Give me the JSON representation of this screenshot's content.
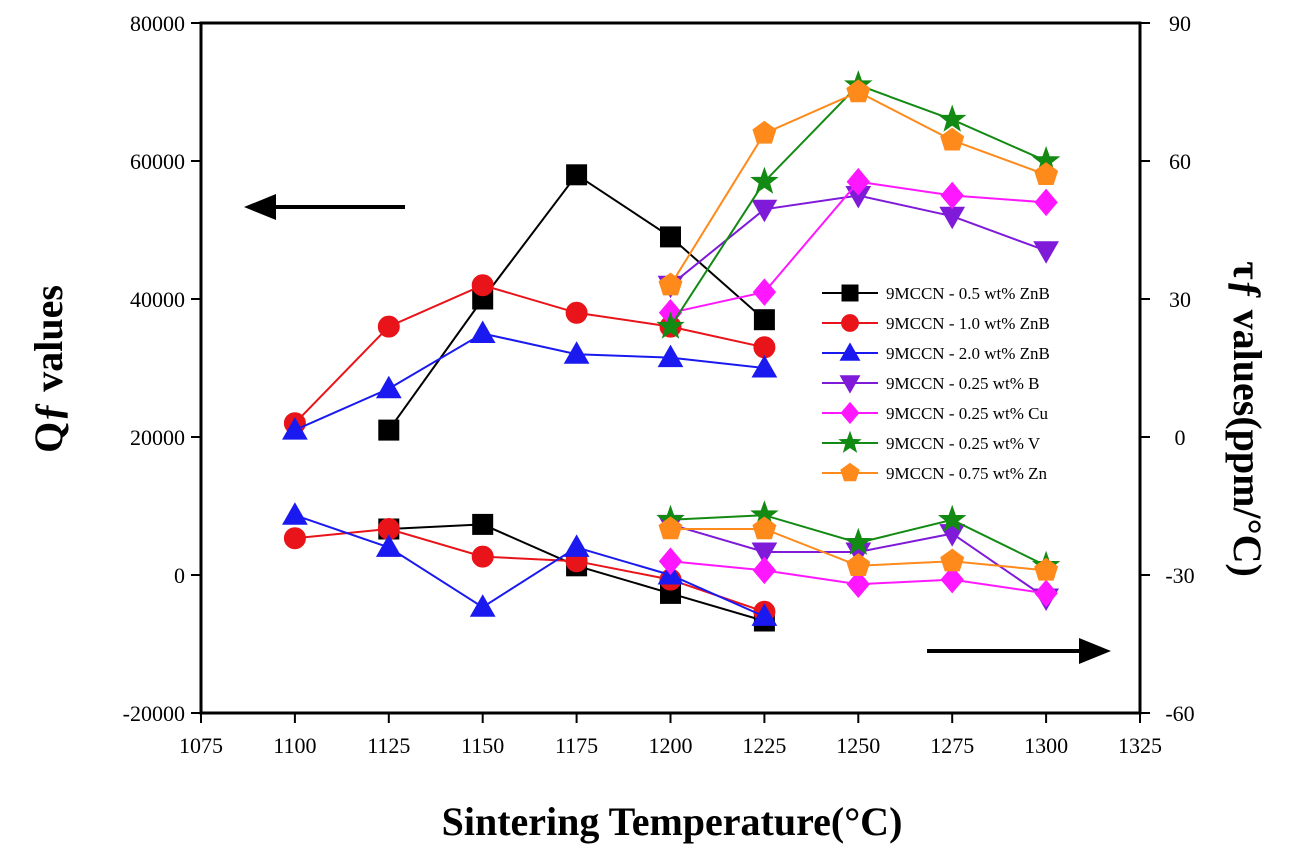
{
  "chart_data": {
    "type": "line",
    "title": "",
    "xlabel": "Sintering Temperature(°C)",
    "ylabel_left": "Qƒ values",
    "ylabel_right": "τƒ values(ppm/°C)",
    "xlim": [
      1075,
      1325
    ],
    "ylim_left": [
      -20000,
      80000
    ],
    "ylim_right": [
      -60,
      90
    ],
    "x_ticks": [
      1075,
      1100,
      1125,
      1150,
      1175,
      1200,
      1225,
      1250,
      1275,
      1300,
      1325
    ],
    "y_ticks_left": [
      -20000,
      0,
      20000,
      40000,
      60000,
      80000
    ],
    "y_ticks_right": [
      -60,
      -30,
      0,
      30,
      60,
      90
    ],
    "grid": false,
    "legend_position": "right",
    "arrows": [
      {
        "points_to": "left-axis",
        "direction": "left"
      },
      {
        "points_to": "right-axis",
        "direction": "right"
      }
    ],
    "series": [
      {
        "name": "9MCCN - 0.5 wt% ZnB",
        "color": "#000000",
        "marker": "square",
        "qf": {
          "x": [
            1125,
            1150,
            1175,
            1200,
            1225
          ],
          "y": [
            21000,
            40000,
            58000,
            49000,
            37000
          ]
        },
        "tf": {
          "x": [
            1125,
            1150,
            1175,
            1200,
            1225
          ],
          "y": [
            -20,
            -19,
            -28,
            -34,
            -40
          ]
        }
      },
      {
        "name": "9MCCN - 1.0 wt% ZnB",
        "color": "#e8141a",
        "marker": "circle",
        "qf": {
          "x": [
            1100,
            1125,
            1150,
            1175,
            1200,
            1225
          ],
          "y": [
            22000,
            36000,
            42000,
            38000,
            36000,
            33000
          ]
        },
        "tf": {
          "x": [
            1100,
            1125,
            1150,
            1175,
            1200,
            1225
          ],
          "y": [
            -22,
            -20,
            -26,
            -27,
            -31,
            -38
          ]
        }
      },
      {
        "name": "9MCCN - 2.0 wt% ZnB",
        "color": "#1a1af0",
        "marker": "triangle-up",
        "qf": {
          "x": [
            1100,
            1125,
            1150,
            1175,
            1200,
            1225
          ],
          "y": [
            21000,
            27000,
            35000,
            32000,
            31500,
            30000
          ]
        },
        "tf": {
          "x": [
            1100,
            1125,
            1150,
            1175,
            1200,
            1225
          ],
          "y": [
            -17,
            -24,
            -37,
            -24,
            -30,
            -39
          ]
        }
      },
      {
        "name": "9MCCN - 0.25 wt% B",
        "color": "#7f1ad9",
        "marker": "triangle-down",
        "qf": {
          "x": [
            1200,
            1225,
            1250,
            1275,
            1300
          ],
          "y": [
            42000,
            53000,
            55000,
            52000,
            47000
          ]
        },
        "tf": {
          "x": [
            1200,
            1225,
            1250,
            1275,
            1300
          ],
          "y": [
            -19,
            -25,
            -25,
            -21,
            -35
          ]
        }
      },
      {
        "name": "9MCCN - 0.25 wt% Cu",
        "color": "#ff17ff",
        "marker": "diamond",
        "qf": {
          "x": [
            1200,
            1225,
            1250,
            1275,
            1300
          ],
          "y": [
            38000,
            41000,
            57000,
            55000,
            54000
          ]
        },
        "tf": {
          "x": [
            1200,
            1225,
            1250,
            1275,
            1300
          ],
          "y": [
            -27,
            -29,
            -32,
            -31,
            -34
          ]
        }
      },
      {
        "name": "9MCCN - 0.25 wt% V",
        "color": "#138a13",
        "marker": "star",
        "qf": {
          "x": [
            1200,
            1225,
            1250,
            1275,
            1300
          ],
          "y": [
            36000,
            57000,
            71000,
            66000,
            60000
          ]
        },
        "tf": {
          "x": [
            1200,
            1225,
            1250,
            1275,
            1300
          ],
          "y": [
            -18,
            -17,
            -23,
            -18,
            -28
          ]
        }
      },
      {
        "name": "9MCCN - 0.75 wt% Zn",
        "color": "#ff8a1c",
        "marker": "pentagon",
        "qf": {
          "x": [
            1200,
            1225,
            1250,
            1275,
            1300
          ],
          "y": [
            42000,
            64000,
            70000,
            63000,
            58000
          ]
        },
        "tf": {
          "x": [
            1200,
            1225,
            1250,
            1275,
            1300
          ],
          "y": [
            -20,
            -20,
            -28,
            -27,
            -29
          ]
        }
      }
    ]
  }
}
